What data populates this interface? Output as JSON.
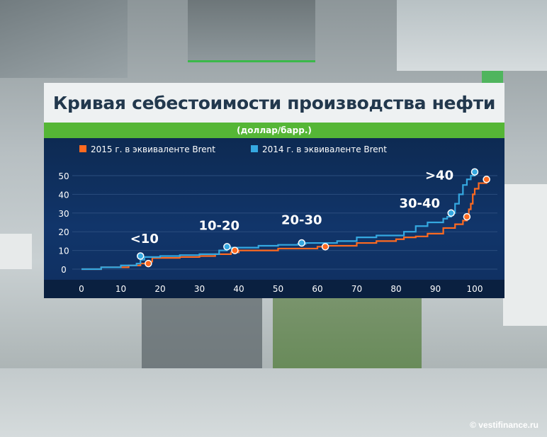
{
  "title": "Кривая себестоимости производства нефти",
  "subtitle": "(доллар/барр.)",
  "watermark": "© vestifinance.ru",
  "colors": {
    "series_2015": "#ff6a20",
    "series_2014": "#35a8e0",
    "accent_green": "#55b636",
    "panel_blue": "#11356a"
  },
  "chart_data": {
    "type": "line",
    "title": "Кривая себестоимости производства нефти",
    "subtitle": "(доллар/барр.)",
    "xlim": [
      0,
      100
    ],
    "ylim": [
      0,
      50
    ],
    "x_ticks": [
      0,
      10,
      20,
      30,
      40,
      50,
      60,
      70,
      80,
      90,
      100
    ],
    "y_ticks": [
      0,
      10,
      20,
      30,
      40,
      50
    ],
    "grid": true,
    "legend_position": "top",
    "series": [
      {
        "name": "2015 г. в эквиваленте Brent",
        "color": "#ff6a20",
        "points": [
          [
            0,
            0
          ],
          [
            5,
            1
          ],
          [
            12,
            2
          ],
          [
            15,
            3
          ],
          [
            17,
            4
          ],
          [
            18,
            6
          ],
          [
            25,
            6.5
          ],
          [
            30,
            7
          ],
          [
            34,
            8
          ],
          [
            38,
            9
          ],
          [
            40,
            10
          ],
          [
            50,
            11
          ],
          [
            60,
            12
          ],
          [
            62,
            12.5
          ],
          [
            70,
            14
          ],
          [
            75,
            15
          ],
          [
            80,
            16
          ],
          [
            82,
            17
          ],
          [
            85,
            17.5
          ],
          [
            88,
            19
          ],
          [
            92,
            22
          ],
          [
            95,
            24
          ],
          [
            97,
            26
          ],
          [
            98,
            28
          ],
          [
            98.5,
            32
          ],
          [
            99,
            35
          ],
          [
            99.5,
            40
          ],
          [
            100,
            43
          ],
          [
            101,
            46
          ],
          [
            103,
            48
          ]
        ]
      },
      {
        "name": "2014 г. в эквиваленте Brent",
        "color": "#35a8e0",
        "points": [
          [
            0,
            0
          ],
          [
            5,
            1
          ],
          [
            10,
            2
          ],
          [
            14,
            3
          ],
          [
            15,
            5
          ],
          [
            16,
            6.5
          ],
          [
            20,
            7
          ],
          [
            25,
            7.5
          ],
          [
            30,
            8
          ],
          [
            35,
            10
          ],
          [
            37,
            11
          ],
          [
            38,
            11.5
          ],
          [
            45,
            12.5
          ],
          [
            50,
            13
          ],
          [
            55,
            13.5
          ],
          [
            57,
            14
          ],
          [
            65,
            15
          ],
          [
            70,
            17
          ],
          [
            75,
            18
          ],
          [
            80,
            18
          ],
          [
            82,
            20
          ],
          [
            85,
            23
          ],
          [
            88,
            25
          ],
          [
            92,
            27
          ],
          [
            93,
            28
          ],
          [
            94,
            30
          ],
          [
            95,
            35
          ],
          [
            96,
            40
          ],
          [
            97,
            45
          ],
          [
            98,
            48
          ],
          [
            99,
            50
          ],
          [
            100,
            52
          ]
        ]
      }
    ],
    "markers": {
      "series_2015": [
        [
          17,
          3
        ],
        [
          39,
          10
        ],
        [
          62,
          12
        ],
        [
          98,
          28
        ],
        [
          103,
          48
        ]
      ],
      "series_2014": [
        [
          15,
          7
        ],
        [
          37,
          12
        ],
        [
          56,
          14
        ],
        [
          94,
          30
        ],
        [
          100,
          52
        ]
      ]
    },
    "annotations": [
      {
        "text": "<10",
        "x": 16,
        "y": 14
      },
      {
        "text": "10-20",
        "x": 35,
        "y": 21
      },
      {
        "text": "20-30",
        "x": 56,
        "y": 24
      },
      {
        "text": "30-40",
        "x": 86,
        "y": 33
      },
      {
        "text": ">40",
        "x": 91,
        "y": 48
      }
    ]
  }
}
